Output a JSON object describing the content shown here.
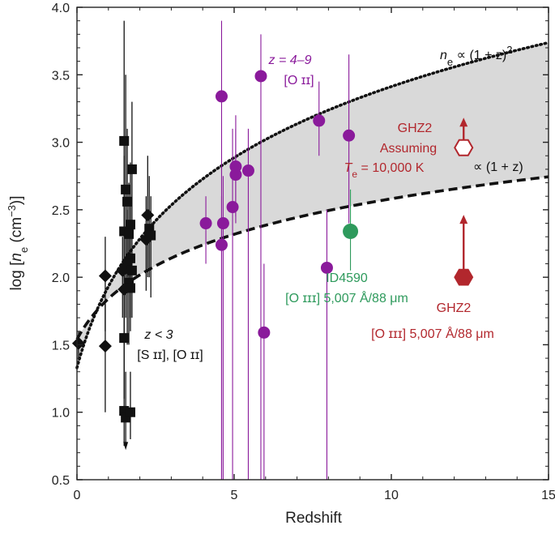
{
  "chart_data": {
    "type": "scatter",
    "title": "",
    "xlabel": "Redshift",
    "ylabel": "log [n_e (cm^-3)]",
    "ylabel_parts": {
      "pre": "log [",
      "n": "n",
      "sub": "e",
      "mid": " (cm",
      "sup": "−3",
      "post": ")]"
    },
    "xlim": [
      0,
      15
    ],
    "ylim": [
      0.5,
      4.0
    ],
    "x_ticks": [
      0,
      5,
      10,
      15
    ],
    "y_ticks": [
      0.5,
      1.0,
      1.5,
      2.0,
      2.5,
      3.0,
      3.5,
      4.0
    ],
    "x_tick_labels": [
      "0",
      "5",
      "10",
      "15"
    ],
    "y_tick_labels": [
      "0.5",
      "1.0",
      "1.5",
      "2.0",
      "2.5",
      "3.0",
      "3.5",
      "4.0"
    ],
    "colors": {
      "black": "#111111",
      "purple": "#8a1a9b",
      "green": "#2e9a5c",
      "red": "#b2272d",
      "band": "#d9d9d9"
    },
    "curves": [
      {
        "name": "n_e ∝ (1 + z)^2",
        "style": "dotted",
        "exponent": 2,
        "log_norm": 1.33
      },
      {
        "name": "∝ (1 + z)",
        "style": "dashed",
        "exponent": 1,
        "log_norm": 1.54
      }
    ],
    "series": [
      {
        "name": "z < 3 [S II], [O II] squares",
        "marker": "square",
        "color": "black",
        "points": [
          {
            "x": 1.5,
            "y": 3.01,
            "lo": 1.5,
            "hi": 3.9
          },
          {
            "x": 1.55,
            "y": 2.65,
            "lo": 2.1,
            "hi": 3.5
          },
          {
            "x": 1.6,
            "y": 2.56,
            "lo": 2.0,
            "hi": 3.1
          },
          {
            "x": 1.75,
            "y": 2.8,
            "lo": 2.3,
            "hi": 3.3
          },
          {
            "x": 1.5,
            "y": 2.34,
            "lo": 1.7,
            "hi": 2.9
          },
          {
            "x": 1.7,
            "y": 2.39,
            "lo": 2.0,
            "hi": 2.85
          },
          {
            "x": 1.65,
            "y": 2.32,
            "lo": 1.9,
            "hi": 2.7
          },
          {
            "x": 1.7,
            "y": 2.14,
            "lo": 1.7,
            "hi": 2.55
          },
          {
            "x": 1.6,
            "y": 2.1,
            "lo": 1.5,
            "hi": 2.5
          },
          {
            "x": 1.55,
            "y": 2.06,
            "lo": 1.7,
            "hi": 2.4
          },
          {
            "x": 1.75,
            "y": 2.05,
            "lo": 1.7,
            "hi": 2.4
          },
          {
            "x": 1.65,
            "y": 1.96,
            "lo": 1.5,
            "hi": 2.3
          },
          {
            "x": 1.7,
            "y": 1.92,
            "lo": 1.6,
            "hi": 2.2
          },
          {
            "x": 1.5,
            "y": 1.55,
            "lo": 1.1,
            "hi": 2.0
          },
          {
            "x": 1.5,
            "y": 1.01,
            "lo": 0.75,
            "hi": 1.4
          },
          {
            "x": 1.55,
            "y": 0.96,
            "lo": 0.75,
            "hi": 1.3
          },
          {
            "x": 1.7,
            "y": 1.0,
            "lo": 0.8,
            "hi": 1.3
          },
          {
            "x": 2.3,
            "y": 2.36,
            "lo": 2.0,
            "hi": 2.75
          },
          {
            "x": 2.35,
            "y": 2.31,
            "lo": 1.85,
            "hi": 2.6
          }
        ]
      },
      {
        "name": "z < 3 [S II], [O II] diamonds",
        "marker": "diamond",
        "color": "black",
        "points": [
          {
            "x": 0.05,
            "y": 1.51,
            "lo": 1.4,
            "hi": 1.6
          },
          {
            "x": 0.9,
            "y": 2.01,
            "lo": 1.6,
            "hi": 2.3
          },
          {
            "x": 0.9,
            "y": 1.49,
            "lo": 1.0,
            "hi": 1.8
          },
          {
            "x": 1.5,
            "y": 1.91,
            "lo": 1.4,
            "hi": 2.3
          },
          {
            "x": 1.45,
            "y": 2.05,
            "lo": 1.7,
            "hi": 2.3
          },
          {
            "x": 2.25,
            "y": 2.46,
            "lo": 2.0,
            "hi": 2.9
          },
          {
            "x": 2.2,
            "y": 2.28,
            "lo": 1.9,
            "hi": 2.6
          }
        ]
      },
      {
        "name": "z = 4–9 [O II]",
        "marker": "circle",
        "color": "purple",
        "points": [
          {
            "x": 4.1,
            "y": 2.4,
            "lo": 2.1,
            "hi": 2.6
          },
          {
            "x": 4.6,
            "y": 3.34,
            "lo": 0.5,
            "hi": 3.9
          },
          {
            "x": 4.65,
            "y": 2.4,
            "lo": 0.5,
            "hi": 2.75
          },
          {
            "x": 4.6,
            "y": 2.24,
            "lo": 0.5,
            "hi": 2.6
          },
          {
            "x": 4.95,
            "y": 2.52,
            "lo": 0.5,
            "hi": 3.1
          },
          {
            "x": 5.05,
            "y": 2.82,
            "lo": 2.45,
            "hi": 3.2
          },
          {
            "x": 5.05,
            "y": 2.76,
            "lo": 2.4,
            "hi": 3.1
          },
          {
            "x": 5.45,
            "y": 2.79,
            "lo": 0.5,
            "hi": 3.1
          },
          {
            "x": 5.85,
            "y": 3.49,
            "lo": 0.5,
            "hi": 3.8
          },
          {
            "x": 5.95,
            "y": 1.59,
            "lo": 0.5,
            "hi": 2.1
          },
          {
            "x": 7.7,
            "y": 3.16,
            "lo": 2.9,
            "hi": 3.45
          },
          {
            "x": 7.95,
            "y": 2.07,
            "lo": 0.5,
            "hi": 2.5
          },
          {
            "x": 8.65,
            "y": 3.05,
            "lo": 2.4,
            "hi": 3.65
          }
        ]
      },
      {
        "name": "ID4590 [O III] 5,007 Å/88 μm",
        "marker": "circle-large",
        "color": "green",
        "points": [
          {
            "x": 8.7,
            "y": 2.34,
            "lo": 2.05,
            "hi": 2.65
          }
        ]
      },
      {
        "name": "GHZ2 [O III] 5,007 Å/88 μm",
        "marker": "hexagon-filled-lower-limit",
        "color": "red",
        "points": [
          {
            "x": 12.3,
            "y": 2.0,
            "arrow_to": 2.45
          }
        ]
      },
      {
        "name": "GHZ2 Assuming Te = 10,000 K",
        "marker": "hexagon-open-lower-limit",
        "color": "red",
        "points": [
          {
            "x": 12.3,
            "y": 2.96,
            "arrow_to": 3.17
          }
        ]
      }
    ],
    "annotations": {
      "curve_sq": {
        "n": "n",
        "sub": "e",
        "rest": " ∝ (1 + z)",
        "sup": "2"
      },
      "curve_lin": "∝ (1 + z)",
      "z49_line1": "z = 4–9",
      "z49_line2": "[O ɪɪ]",
      "lowz_line1": "z < 3",
      "lowz_line2": "[S ɪɪ], [O ɪɪ]",
      "id4590_name": "ID4590",
      "id4590_lines": "[O ɪɪɪ] 5,007 Å/88 μm",
      "ghz2_name": "GHZ2",
      "ghz2_lines": "[O ɪɪɪ] 5,007 Å/88 μm",
      "ghz2_te_line1": "GHZ2",
      "ghz2_te_line2": "Assuming",
      "ghz2_te_T": "T",
      "ghz2_te_sub": "e",
      "ghz2_te_value": " = 10,000 K"
    }
  }
}
